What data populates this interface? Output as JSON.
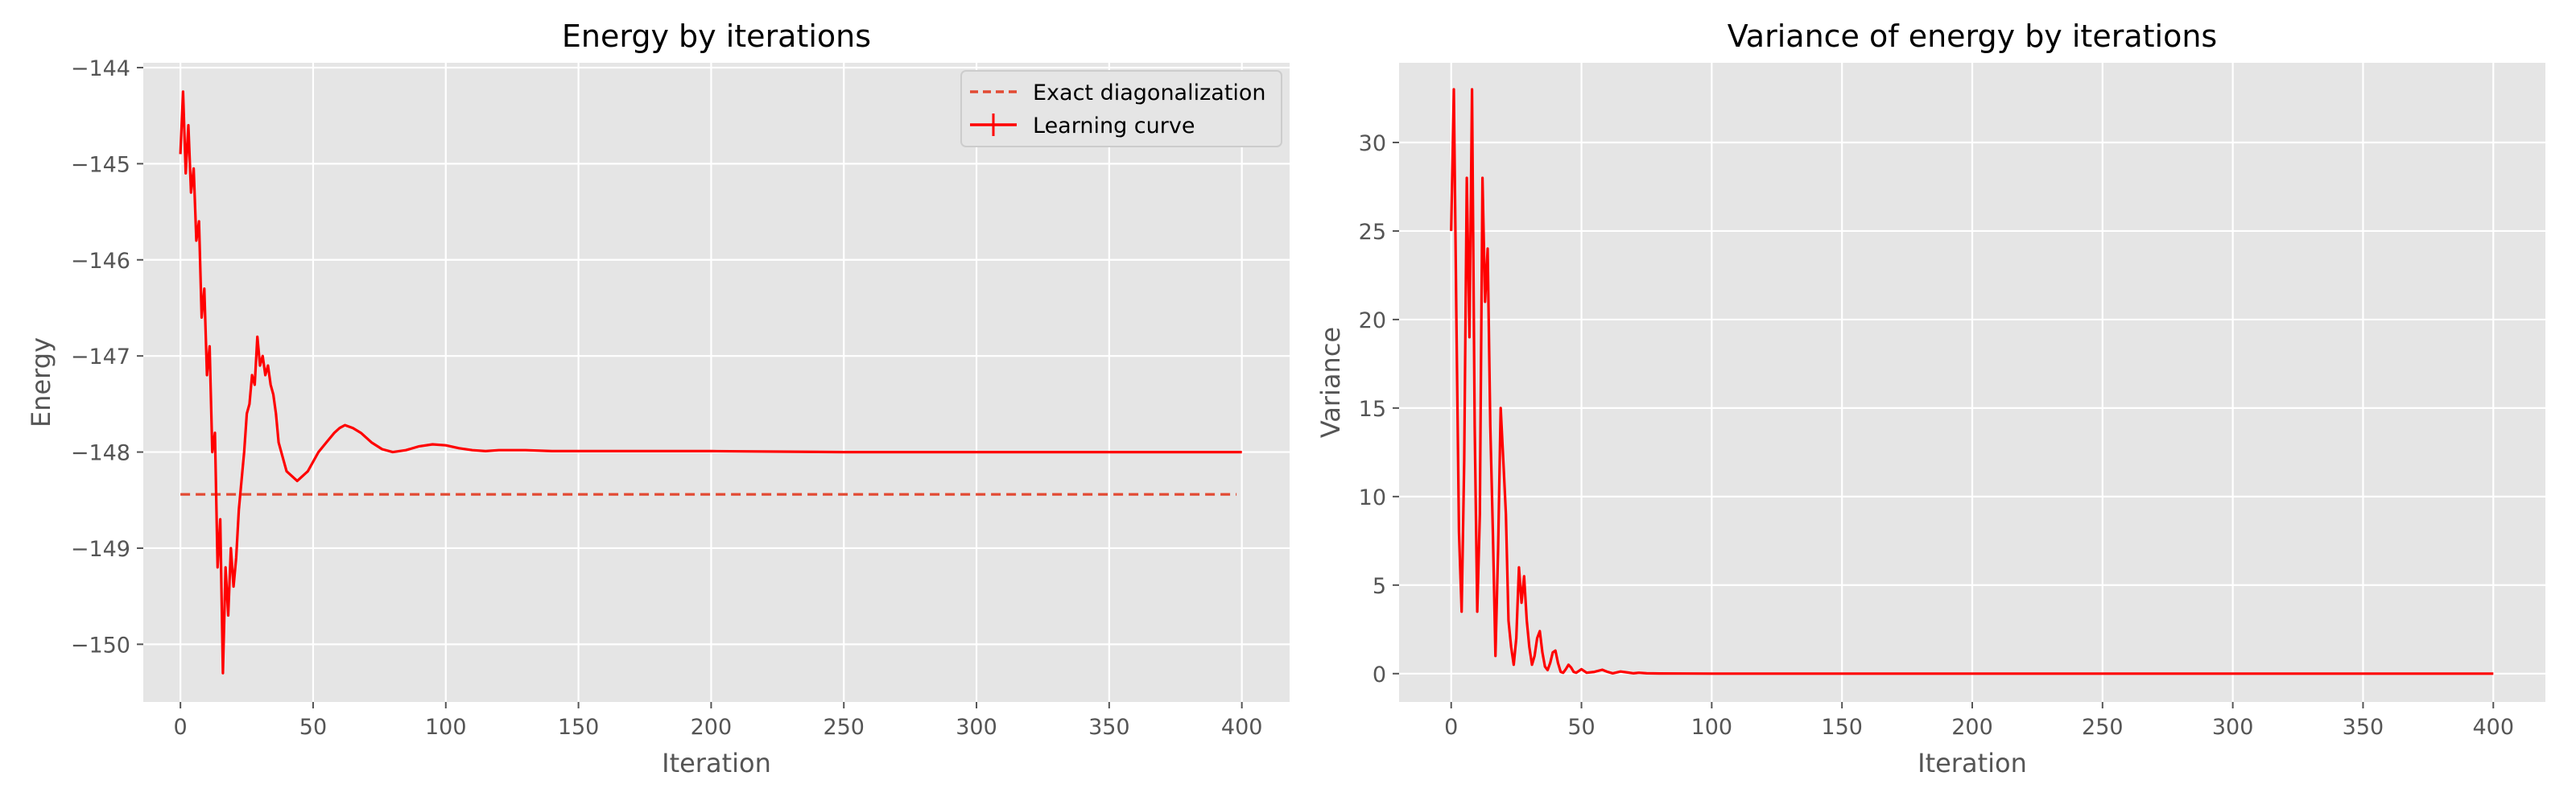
{
  "chart_data": [
    {
      "type": "line",
      "title": "Energy by iterations",
      "xlabel": "Iteration",
      "ylabel": "Energy",
      "xlim": [
        -14,
        418
      ],
      "ylim": [
        -150.6,
        -143.95
      ],
      "xticks": [
        0,
        50,
        100,
        150,
        200,
        250,
        300,
        350,
        400
      ],
      "xtick_labels": [
        "0",
        "50",
        "100",
        "150",
        "200",
        "250",
        "300",
        "350",
        "400"
      ],
      "yticks": [
        -144,
        -145,
        -146,
        -147,
        -148,
        -149,
        -150
      ],
      "ytick_labels": [
        "−144",
        "−145",
        "−146",
        "−147",
        "−148",
        "−149",
        "−150"
      ],
      "grid": true,
      "legend_position": "top-right",
      "series": [
        {
          "name": "Exact diagonalization",
          "style": "dashed",
          "color": "#e24a33",
          "x": [
            0,
            398
          ],
          "y": [
            -148.44,
            -148.44
          ]
        },
        {
          "name": "Learning curve",
          "style": "solid",
          "color": "#ff0000",
          "x": [
            0,
            1,
            2,
            3,
            4,
            5,
            6,
            7,
            8,
            9,
            10,
            11,
            12,
            13,
            14,
            15,
            16,
            17,
            18,
            19,
            20,
            21,
            22,
            23,
            24,
            25,
            26,
            27,
            28,
            29,
            30,
            31,
            32,
            33,
            34,
            35,
            36,
            37,
            38,
            39,
            40,
            42,
            44,
            46,
            48,
            50,
            52,
            55,
            58,
            60,
            62,
            65,
            68,
            72,
            76,
            80,
            85,
            90,
            95,
            100,
            105,
            110,
            115,
            120,
            130,
            140,
            150,
            200,
            250,
            300,
            350,
            400
          ],
          "y": [
            -144.9,
            -144.25,
            -145.1,
            -144.6,
            -145.3,
            -145.05,
            -145.8,
            -145.6,
            -146.6,
            -146.3,
            -147.2,
            -146.9,
            -148.0,
            -147.8,
            -149.2,
            -148.7,
            -150.3,
            -149.2,
            -149.7,
            -149.0,
            -149.4,
            -149.1,
            -148.6,
            -148.3,
            -148.0,
            -147.6,
            -147.5,
            -147.2,
            -147.3,
            -146.8,
            -147.1,
            -147.0,
            -147.2,
            -147.1,
            -147.3,
            -147.4,
            -147.6,
            -147.9,
            -148.0,
            -148.1,
            -148.2,
            -148.25,
            -148.3,
            -148.25,
            -148.2,
            -148.1,
            -148.0,
            -147.9,
            -147.8,
            -147.75,
            -147.72,
            -147.75,
            -147.8,
            -147.9,
            -147.97,
            -148.0,
            -147.98,
            -147.94,
            -147.92,
            -147.93,
            -147.96,
            -147.98,
            -147.99,
            -147.98,
            -147.98,
            -147.99,
            -147.99,
            -147.99,
            -148.0,
            -148.0,
            -148.0,
            -148.0
          ]
        }
      ]
    },
    {
      "type": "line",
      "title": "Variance of energy by iterations",
      "xlabel": "Iteration",
      "ylabel": "Variance",
      "xlim": [
        -20,
        420
      ],
      "ylim": [
        -1.6,
        34.5
      ],
      "xticks": [
        0,
        50,
        100,
        150,
        200,
        250,
        300,
        350,
        400
      ],
      "xtick_labels": [
        "0",
        "50",
        "100",
        "150",
        "200",
        "250",
        "300",
        "350",
        "400"
      ],
      "yticks": [
        0,
        5,
        10,
        15,
        20,
        25,
        30
      ],
      "ytick_labels": [
        "0",
        "5",
        "10",
        "15",
        "20",
        "25",
        "30"
      ],
      "grid": true,
      "series": [
        {
          "style": "solid",
          "color": "#ff0000",
          "x": [
            0,
            1,
            2,
            3,
            4,
            5,
            6,
            7,
            8,
            9,
            10,
            11,
            12,
            13,
            14,
            15,
            16,
            17,
            18,
            19,
            20,
            21,
            22,
            23,
            24,
            25,
            26,
            27,
            28,
            29,
            30,
            31,
            32,
            33,
            34,
            35,
            36,
            37,
            38,
            39,
            40,
            41,
            42,
            43,
            44,
            45,
            46,
            47,
            48,
            50,
            52,
            55,
            58,
            60,
            62,
            65,
            68,
            70,
            72,
            75,
            80,
            90,
            100,
            150,
            200,
            250,
            300,
            350,
            400
          ],
          "y": [
            25,
            33,
            20,
            8,
            3.5,
            12,
            28,
            19,
            33,
            14,
            3.5,
            9,
            28,
            21,
            24,
            14,
            8,
            1,
            7,
            15,
            12,
            9,
            3,
            1.5,
            0.5,
            2,
            6,
            4,
            5.5,
            3,
            1.5,
            0.5,
            1,
            2,
            2.4,
            1.2,
            0.4,
            0.2,
            0.6,
            1.2,
            1.3,
            0.6,
            0.1,
            0.05,
            0.25,
            0.5,
            0.35,
            0.1,
            0.05,
            0.25,
            0.05,
            0.1,
            0.22,
            0.1,
            0.02,
            0.12,
            0.06,
            0.02,
            0.05,
            0.02,
            0.01,
            0.005,
            0.0,
            0.0,
            0.0,
            0.0,
            0.0,
            0.0,
            0.0
          ]
        }
      ]
    }
  ]
}
